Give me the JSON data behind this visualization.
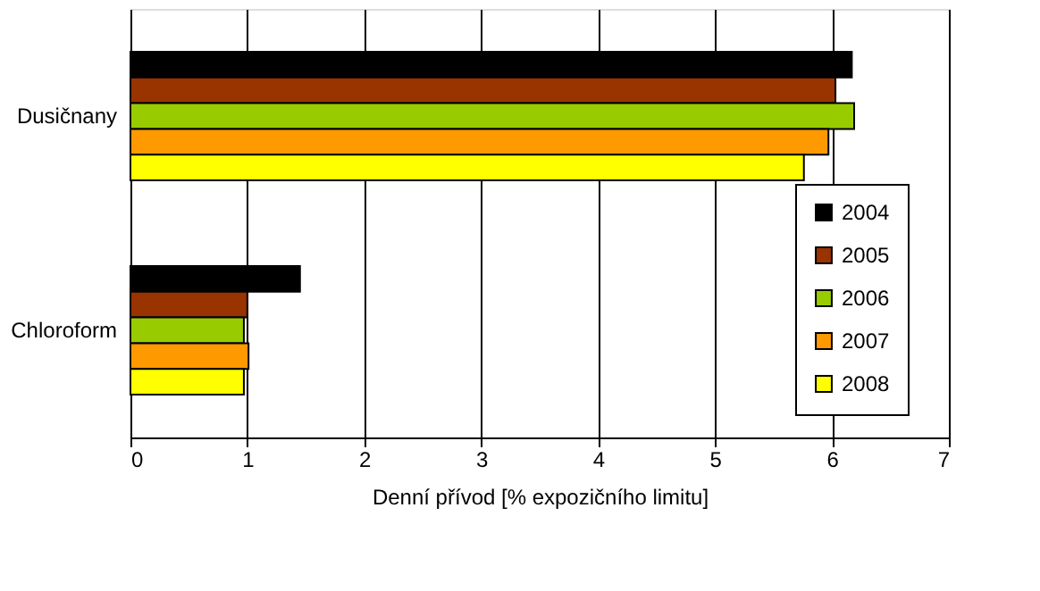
{
  "chart_data": {
    "type": "bar",
    "orientation": "horizontal",
    "xlabel": "Denní přívod  [% expozičního limitu]",
    "categories": [
      "Dusičnany",
      "Chloroform"
    ],
    "series": [
      {
        "name": "2004",
        "color": "#000000",
        "values": [
          6.17,
          1.45
        ]
      },
      {
        "name": "2005",
        "color": "#993300",
        "values": [
          6.03,
          1.0
        ]
      },
      {
        "name": "2006",
        "color": "#99cc00",
        "values": [
          6.19,
          0.97
        ]
      },
      {
        "name": "2007",
        "color": "#ff9900",
        "values": [
          5.97,
          1.01
        ]
      },
      {
        "name": "2008",
        "color": "#ffff00",
        "values": [
          5.76,
          0.97
        ]
      }
    ],
    "xlim": [
      0,
      7
    ],
    "xticks": [
      0,
      1,
      2,
      3,
      4,
      5,
      6,
      7
    ],
    "grid": "x",
    "legend": "bottom right"
  }
}
